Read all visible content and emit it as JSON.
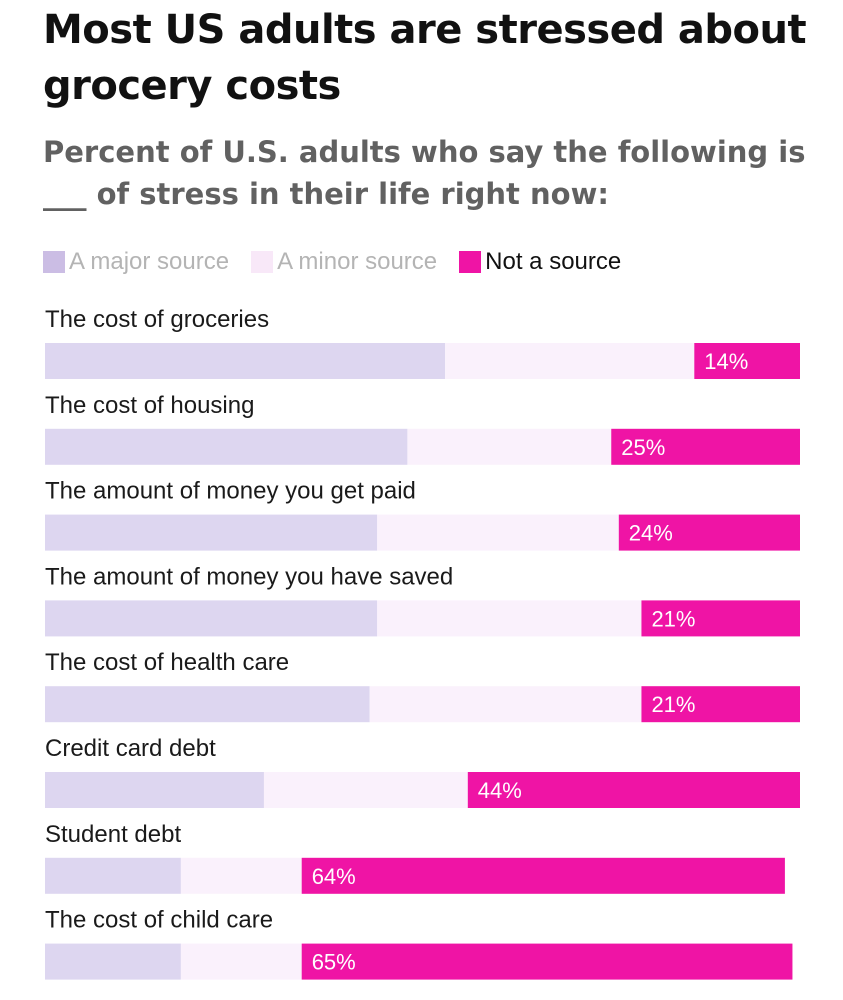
{
  "chart_data": {
    "type": "bar",
    "orientation": "horizontal",
    "stacked": true,
    "title": "Most US adults are stressed about grocery costs",
    "subtitle": "Percent of U.S. adults who say the following is ___ of stress in their life right now:",
    "categories": [
      "The cost of groceries",
      "The cost of housing",
      "The amount of money you get paid",
      "The amount of money you have saved",
      "The cost of health care",
      "Credit card debt",
      "Student debt",
      "The cost of child care"
    ],
    "series": [
      {
        "name": "A major source",
        "color": "#ddd6f0",
        "label_color": "#b4b4b4",
        "swatch": "#cbbde4",
        "values": [
          53,
          48,
          44,
          44,
          43,
          29,
          18,
          18
        ]
      },
      {
        "name": "A minor source",
        "color": "#faf1fc",
        "label_color": "#b4b4b4",
        "swatch": "#f8e8f8",
        "values": [
          33,
          27,
          32,
          35,
          36,
          27,
          16,
          16
        ]
      },
      {
        "name": "Not a source",
        "color": "#ef14a5",
        "label_color": "#111111",
        "swatch": "#ef14a5",
        "values": [
          14,
          25,
          24,
          21,
          21,
          44,
          64,
          65
        ],
        "labels": [
          "14%",
          "25%",
          "24%",
          "21%",
          "21%",
          "44%",
          "64%",
          "65%"
        ]
      }
    ],
    "legend": "top-left",
    "xlim": [
      0,
      100
    ],
    "grid": false
  }
}
